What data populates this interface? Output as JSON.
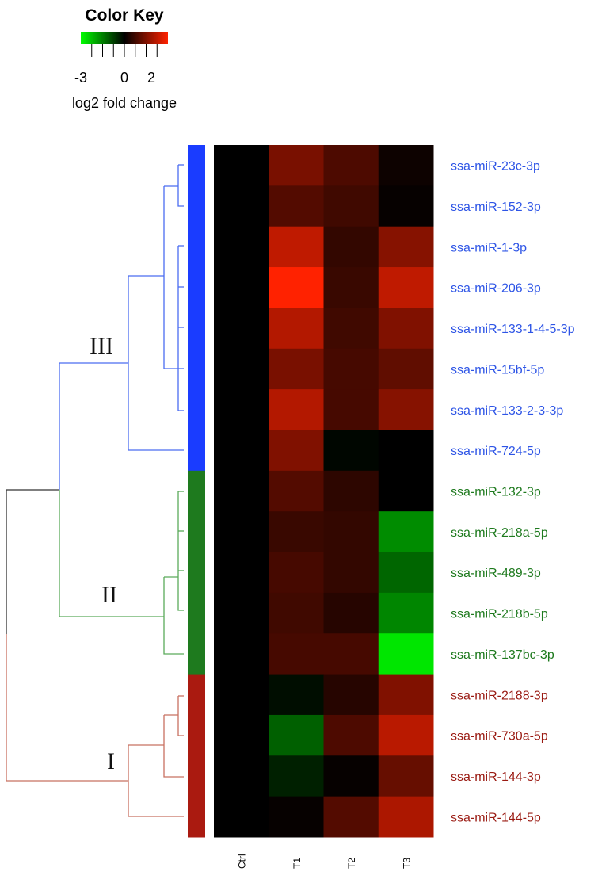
{
  "chart_data": {
    "type": "heatmap",
    "color_key": {
      "title": "Color Key",
      "tick_labels": [
        "-3",
        "0",
        "2"
      ],
      "scale_label": "log2 fold change",
      "range": [
        -4,
        4
      ],
      "low_color": "#00ff00",
      "mid_color": "#000000",
      "high_color": "#ff2200"
    },
    "columns": [
      "Ctrl",
      "T1",
      "T2",
      "T3"
    ],
    "rows": [
      {
        "label": "ssa-miR-23c-3p",
        "group": "III",
        "values": [
          0,
          1.9,
          1.2,
          0.2
        ]
      },
      {
        "label": "ssa-miR-152-3p",
        "group": "III",
        "values": [
          0,
          1.3,
          1.0,
          0.1
        ]
      },
      {
        "label": "ssa-miR-1-3p",
        "group": "III",
        "values": [
          0,
          3.0,
          0.8,
          2.1
        ]
      },
      {
        "label": "ssa-miR-206-3p",
        "group": "III",
        "values": [
          0,
          4.0,
          0.9,
          3.0
        ]
      },
      {
        "label": "ssa-miR-133-1-4-5-3p",
        "group": "III",
        "values": [
          0,
          2.8,
          1.0,
          2.0
        ]
      },
      {
        "label": "ssa-miR-15bf-5p",
        "group": "III",
        "values": [
          0,
          1.9,
          1.1,
          1.5
        ]
      },
      {
        "label": "ssa-miR-133-2-3-3p",
        "group": "III",
        "values": [
          0,
          2.8,
          1.1,
          2.1
        ]
      },
      {
        "label": "ssa-miR-724-5p",
        "group": "III",
        "values": [
          0,
          2.0,
          -0.1,
          0.0
        ]
      },
      {
        "label": "ssa-miR-132-3p",
        "group": "II",
        "values": [
          0,
          1.3,
          0.7,
          0.0
        ]
      },
      {
        "label": "ssa-miR-218a-5p",
        "group": "II",
        "values": [
          0,
          0.9,
          0.8,
          -2.2
        ]
      },
      {
        "label": "ssa-miR-489-3p",
        "group": "II",
        "values": [
          0,
          1.1,
          0.8,
          -1.6
        ]
      },
      {
        "label": "ssa-miR-218b-5p",
        "group": "II",
        "values": [
          0,
          1.0,
          0.6,
          -2.1
        ]
      },
      {
        "label": "ssa-miR-137bc-3p",
        "group": "II",
        "values": [
          0,
          1.1,
          1.1,
          -3.6
        ]
      },
      {
        "label": "ssa-miR-2188-3p",
        "group": "I",
        "values": [
          0,
          -0.2,
          0.6,
          2.0
        ]
      },
      {
        "label": "ssa-miR-730a-5p",
        "group": "I",
        "values": [
          0,
          -1.5,
          1.2,
          2.9
        ]
      },
      {
        "label": "ssa-miR-144-3p",
        "group": "I",
        "values": [
          0,
          -0.5,
          0.1,
          1.6
        ]
      },
      {
        "label": "ssa-miR-144-5p",
        "group": "I",
        "values": [
          0,
          0.1,
          1.3,
          2.7
        ]
      }
    ],
    "groups": [
      {
        "name": "III",
        "color": "#1a3cff",
        "label_color": "#2e55e6"
      },
      {
        "name": "II",
        "color": "#1e7a1e",
        "label_color": "#1e7a1e"
      },
      {
        "name": "I",
        "color": "#aa1a10",
        "label_color": "#9a1a12"
      }
    ],
    "dendrogram_colors": {
      "root": "#333333",
      "III": "#4a6cf0",
      "II": "#5aaa5a",
      "I": "#c87060"
    }
  }
}
